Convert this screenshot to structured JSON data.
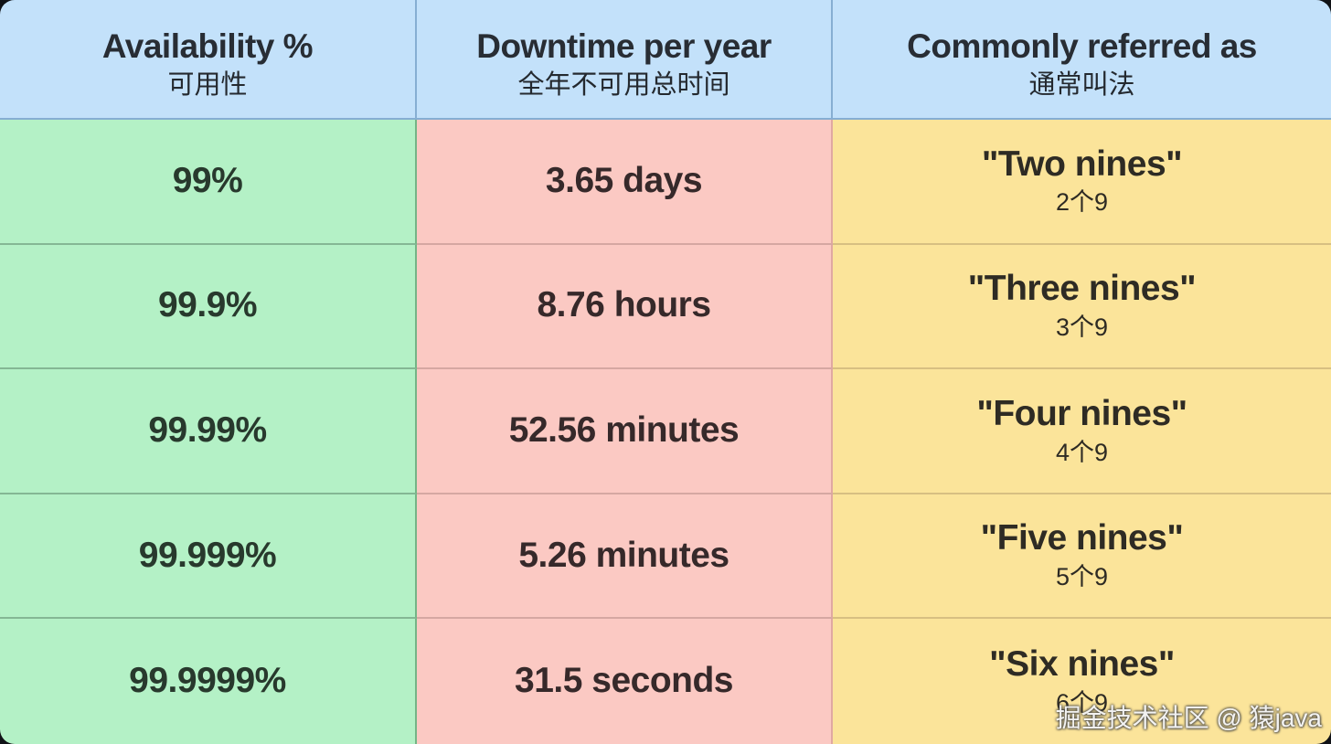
{
  "chart_data": {
    "type": "table",
    "columns": [
      {
        "label_en": "Availability %",
        "label_zh": "可用性"
      },
      {
        "label_en": "Downtime per year",
        "label_zh": "全年不可用总时间"
      },
      {
        "label_en": "Commonly referred as",
        "label_zh": "通常叫法"
      }
    ],
    "rows": [
      {
        "availability": "99%",
        "downtime_per_year": "3.65 days",
        "referred_as_en": "\"Two nines\"",
        "referred_as_zh": "2个9"
      },
      {
        "availability": "99.9%",
        "downtime_per_year": "8.76 hours",
        "referred_as_en": "\"Three nines\"",
        "referred_as_zh": "3个9"
      },
      {
        "availability": "99.99%",
        "downtime_per_year": "52.56 minutes",
        "referred_as_en": "\"Four nines\"",
        "referred_as_zh": "4个9"
      },
      {
        "availability": "99.999%",
        "downtime_per_year": "5.26 minutes",
        "referred_as_en": "\"Five nines\"",
        "referred_as_zh": "5个9"
      },
      {
        "availability": "99.9999%",
        "downtime_per_year": "31.5 seconds",
        "referred_as_en": "\"Six nines\"",
        "referred_as_zh": "6个9"
      }
    ]
  },
  "watermark": {
    "text": "掘金技术社区 @ 猿java"
  },
  "colors": {
    "header_bg": "#c3e1fa",
    "availability_col_bg": "#b4f1c6",
    "downtime_col_bg": "#fbc9c3",
    "referred_col_bg": "#fbe49a",
    "text": "#2b3036",
    "page_background": "#101216"
  }
}
